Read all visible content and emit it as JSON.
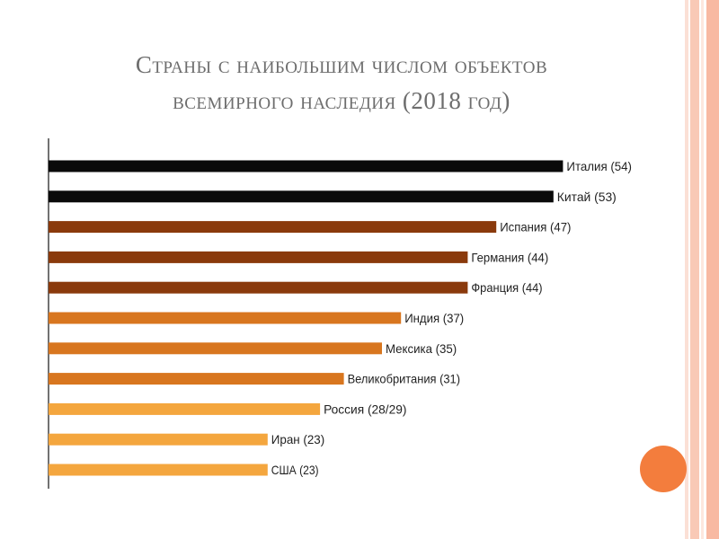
{
  "slide": {
    "title_line1": "Страны с наибольшим числом объектов",
    "title_line2": "всемирного наследия (2018 год)"
  },
  "chart_data": {
    "type": "bar",
    "orientation": "horizontal",
    "categories": [
      "Италия",
      "Китай",
      "Испания",
      "Германия",
      "Франция",
      "Индия",
      "Мексика",
      "Великобритания",
      "Россия",
      "Иран",
      "США"
    ],
    "values": [
      54,
      53,
      47,
      44,
      44,
      37,
      35,
      31,
      28.5,
      23,
      23
    ],
    "data_labels": [
      "Италия (54)",
      "Китай (53)",
      "Испания (47)",
      "Германия (44)",
      "Франция (44)",
      "Индия (37)",
      "Мексика (35)",
      "Великобритания (31)",
      "Россия (28/29)",
      "Иран (23)",
      "США (23)"
    ],
    "bar_colors": [
      "#0a0a0a",
      "#0a0a0a",
      "#8a3a0c",
      "#8a3a0c",
      "#8a3a0c",
      "#d8761f",
      "#d8761f",
      "#d8761f",
      "#f4a63e",
      "#f4a63e",
      "#f4a63e"
    ],
    "xlim": [
      0,
      54
    ],
    "grid": false,
    "legend": "none"
  }
}
